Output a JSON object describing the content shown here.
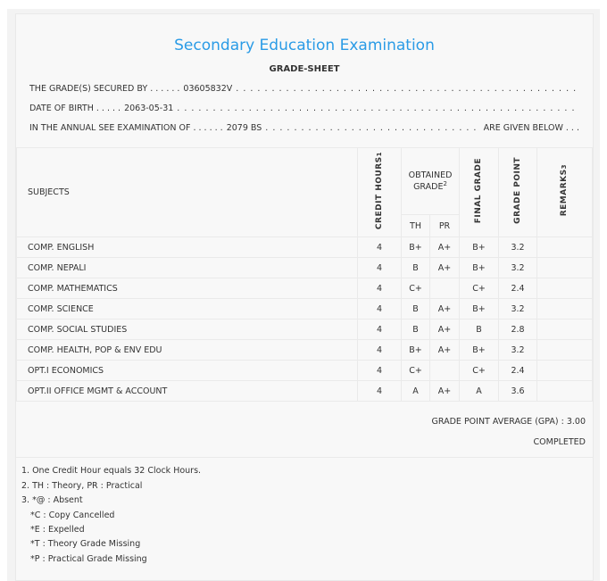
{
  "title": "Secondary Education Examination",
  "subtitle": "GRADE-SHEET",
  "info": {
    "secured_by_label": "THE GRADE(S) SECURED BY . . . . . .",
    "symbol_no": "03605832V",
    "dob_label": "DATE OF BIRTH . . . . .",
    "dob": "2063-05-31",
    "exam_label": "IN THE ANNUAL SEE EXAMINATION OF . . . . . .",
    "exam_year": "2079 BS",
    "given_below": "ARE GIVEN BELOW . . ."
  },
  "table": {
    "headers": {
      "subjects": "SUBJECTS",
      "credit": "CREDIT HOURS",
      "credit_sup": "1",
      "obtained": "OBTAINED GRADE",
      "obtained_sup": "2",
      "th": "TH",
      "pr": "PR",
      "final": "FINAL GRADE",
      "point": "GRADE POINT",
      "remarks": "REMARKS",
      "remarks_sup": "3"
    },
    "rows": [
      {
        "subject": "COMP. ENGLISH",
        "credit": "4",
        "th": "B+",
        "pr": "A+",
        "final": "B+",
        "point": "3.2",
        "remarks": ""
      },
      {
        "subject": "COMP. NEPALI",
        "credit": "4",
        "th": "B",
        "pr": "A+",
        "final": "B+",
        "point": "3.2",
        "remarks": ""
      },
      {
        "subject": "COMP. MATHEMATICS",
        "credit": "4",
        "th": "C+",
        "pr": "",
        "final": "C+",
        "point": "2.4",
        "remarks": ""
      },
      {
        "subject": "COMP. SCIENCE",
        "credit": "4",
        "th": "B",
        "pr": "A+",
        "final": "B+",
        "point": "3.2",
        "remarks": ""
      },
      {
        "subject": "COMP. SOCIAL STUDIES",
        "credit": "4",
        "th": "B",
        "pr": "A+",
        "final": "B",
        "point": "2.8",
        "remarks": ""
      },
      {
        "subject": "COMP. HEALTH, POP & ENV EDU",
        "credit": "4",
        "th": "B+",
        "pr": "A+",
        "final": "B+",
        "point": "3.2",
        "remarks": ""
      },
      {
        "subject": "OPT.I ECONOMICS",
        "credit": "4",
        "th": "C+",
        "pr": "",
        "final": "C+",
        "point": "2.4",
        "remarks": ""
      },
      {
        "subject": "OPT.II OFFICE MGMT & ACCOUNT",
        "credit": "4",
        "th": "A",
        "pr": "A+",
        "final": "A",
        "point": "3.6",
        "remarks": ""
      }
    ]
  },
  "gpa": "GRADE POINT AVERAGE (GPA) : 3.00",
  "status": "COMPLETED",
  "notes": [
    "1. One Credit Hour equals 32 Clock Hours.",
    "2. TH : Theory, PR : Practical",
    "3. *@ : Absent",
    "*C : Copy Cancelled",
    "*E : Expelled",
    "*T : Theory Grade Missing",
    "*P : Practical Grade Missing"
  ],
  "colors": {
    "title": "#2a9be6"
  }
}
